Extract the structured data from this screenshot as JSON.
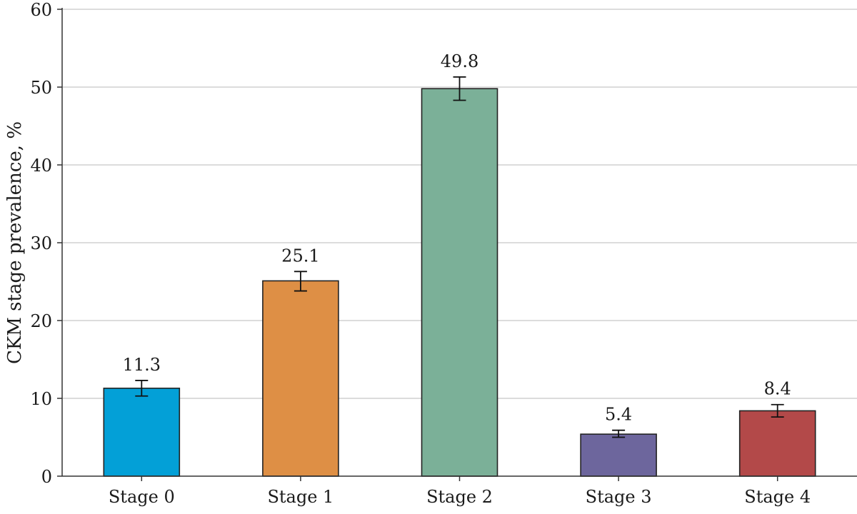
{
  "chart_data": {
    "type": "bar",
    "categories": [
      "Stage 0",
      "Stage 1",
      "Stage 2",
      "Stage 3",
      "Stage 4"
    ],
    "values": [
      11.3,
      25.1,
      49.8,
      5.4,
      8.4
    ],
    "value_labels": [
      "11.3",
      "25.1",
      "49.8",
      "5.4",
      "8.4"
    ],
    "error_low": [
      10.3,
      23.8,
      48.3,
      5.0,
      7.6
    ],
    "error_high": [
      12.3,
      26.3,
      51.3,
      5.9,
      9.2
    ],
    "colors": [
      "#03a0d7",
      "#de8f45",
      "#7bb098",
      "#6d669d",
      "#b34949"
    ],
    "ylabel": "CKM stage prevalence, %",
    "ylim": [
      0,
      60
    ],
    "yticks": [
      "0",
      "10",
      "20",
      "30",
      "40",
      "50",
      "60"
    ],
    "grid": "horizontal"
  }
}
